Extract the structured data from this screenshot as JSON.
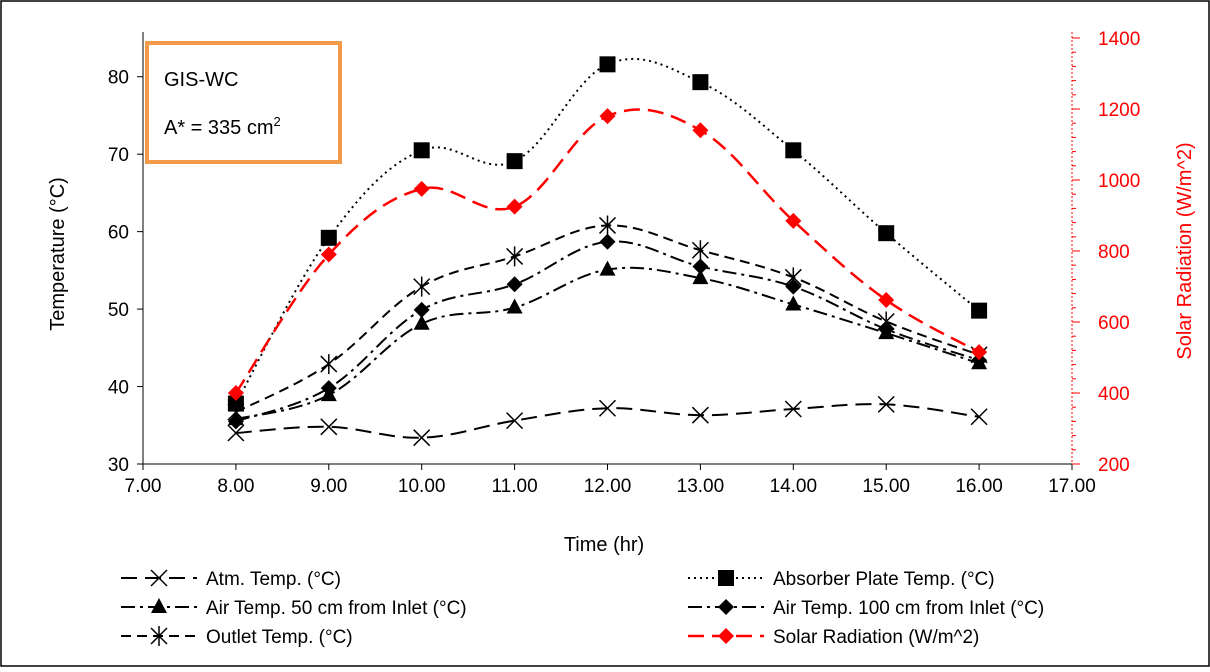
{
  "chart_data": {
    "type": "line",
    "xlabel": "Time (hr)",
    "ylabel": "Temperature (°C)",
    "y2label": "Solar Radiation (W/m^2)",
    "xlim": [
      7,
      17
    ],
    "ylim": [
      30,
      85
    ],
    "y2lim": [
      200,
      1400
    ],
    "xticks": [
      "7.00",
      "8.00",
      "9.00",
      "10.00",
      "11.00",
      "12.00",
      "13.00",
      "14.00",
      "15.00",
      "16.00",
      "17.00"
    ],
    "yticks": [
      "30",
      "40",
      "50",
      "60",
      "70",
      "80"
    ],
    "y2ticks": [
      "200",
      "400",
      "600",
      "800",
      "1000",
      "1200",
      "1400"
    ],
    "grid": false,
    "legend_position": "bottom",
    "annotation": {
      "line1": "GIS-WC",
      "line2_prefix": "A* = 335 cm",
      "line2_sup": "2",
      "border_color": "#f2994a"
    },
    "x": [
      8,
      9,
      10,
      11,
      12,
      13,
      14,
      15,
      16
    ],
    "series": [
      {
        "name": "Atm. Temp. (°C)",
        "axis": "left",
        "marker": "x",
        "dash": "long-dash",
        "color": "#000000",
        "values": [
          34.0,
          34.8,
          33.4,
          35.6,
          37.2,
          36.3,
          37.1,
          37.7,
          36.1
        ]
      },
      {
        "name": "Absorber Plate Temp. (°C)",
        "axis": "left",
        "marker": "square",
        "dash": "dotted",
        "color": "#000000",
        "values": [
          37.8,
          59.2,
          70.5,
          69.1,
          81.6,
          79.3,
          70.5,
          59.8,
          49.8
        ]
      },
      {
        "name": "Air Temp. 50 cm from Inlet (°C)",
        "axis": "left",
        "marker": "triangle",
        "dash": "dash-dot",
        "color": "#000000",
        "values": [
          35.8,
          38.9,
          48.1,
          50.2,
          55.1,
          54.0,
          50.6,
          46.9,
          43.0
        ]
      },
      {
        "name": "Air Temp. 100 cm from Inlet (°C)",
        "axis": "left",
        "marker": "diamond",
        "dash": "dash-dot",
        "color": "#000000",
        "values": [
          35.5,
          39.8,
          49.9,
          53.2,
          58.7,
          55.5,
          52.9,
          47.4,
          43.4
        ]
      },
      {
        "name": "Outlet Temp. (°C)",
        "axis": "left",
        "marker": "asterisk",
        "dash": "dashed",
        "color": "#000000",
        "values": [
          36.7,
          42.9,
          52.9,
          56.8,
          60.8,
          57.6,
          54.1,
          48.4,
          44.1
        ]
      },
      {
        "name": "Solar Radiation (W/m^2)",
        "axis": "right",
        "marker": "diamond",
        "dash": "long-dash",
        "color": "#ff0000",
        "values": [
          400,
          790,
          975,
          925,
          1180,
          1140,
          885,
          662,
          515
        ]
      }
    ]
  }
}
